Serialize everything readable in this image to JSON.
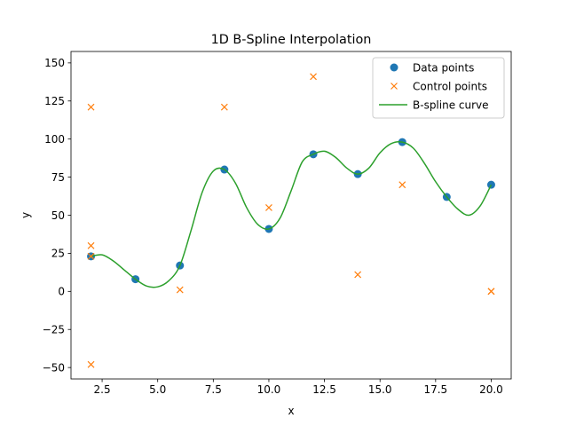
{
  "chart_data": {
    "type": "scatter",
    "title": "1D B-Spline Interpolation",
    "xlabel": "x",
    "ylabel": "y",
    "xlim": [
      1.1,
      20.9
    ],
    "ylim": [
      -57.5,
      157.5
    ],
    "xticks": [
      2.5,
      5.0,
      7.5,
      10.0,
      12.5,
      15.0,
      17.5,
      20.0
    ],
    "xtick_labels": [
      "2.5",
      "5.0",
      "7.5",
      "10.0",
      "12.5",
      "15.0",
      "17.5",
      "20.0"
    ],
    "yticks": [
      -50,
      -25,
      0,
      25,
      50,
      75,
      100,
      125,
      150
    ],
    "ytick_labels": [
      "−50",
      "−25",
      "0",
      "25",
      "50",
      "75",
      "100",
      "125",
      "150"
    ],
    "grid": false,
    "legend_position": "upper right",
    "series": [
      {
        "name": "Data points",
        "kind": "markers",
        "marker": "circle",
        "color": "#1f77b4",
        "x": [
          2,
          4,
          6,
          8,
          10,
          12,
          14,
          16,
          18,
          20
        ],
        "y": [
          23,
          8,
          17,
          80,
          41,
          90,
          77,
          98,
          62,
          70
        ]
      },
      {
        "name": "Control points",
        "kind": "markers",
        "marker": "x",
        "color": "#ff7f0e",
        "x": [
          2,
          2,
          2,
          2,
          6,
          8,
          10,
          12,
          14,
          16,
          20,
          20
        ],
        "y": [
          23,
          30,
          121,
          -48,
          1,
          121,
          55,
          141,
          11,
          70,
          0,
          0
        ]
      },
      {
        "name": "B-spline curve",
        "kind": "line",
        "color": "#2ca02c",
        "x": [
          2,
          2.5,
          3,
          3.5,
          4,
          4.5,
          5,
          5.5,
          6,
          6.5,
          7,
          7.5,
          8,
          8.5,
          9,
          9.5,
          10,
          10.5,
          11,
          11.5,
          12,
          12.5,
          13,
          13.5,
          14,
          14.5,
          15,
          15.5,
          16,
          16.5,
          17,
          17.5,
          18,
          18.5,
          19,
          19.5,
          20
        ],
        "y": [
          23,
          24,
          20,
          14,
          8,
          3.5,
          3,
          7,
          17,
          40,
          65,
          79,
          80,
          71,
          55,
          44,
          41,
          48,
          66,
          85,
          90,
          92,
          88,
          81,
          77,
          81,
          91,
          97,
          98,
          94,
          84,
          72,
          62,
          54,
          50,
          56,
          70
        ]
      }
    ]
  }
}
